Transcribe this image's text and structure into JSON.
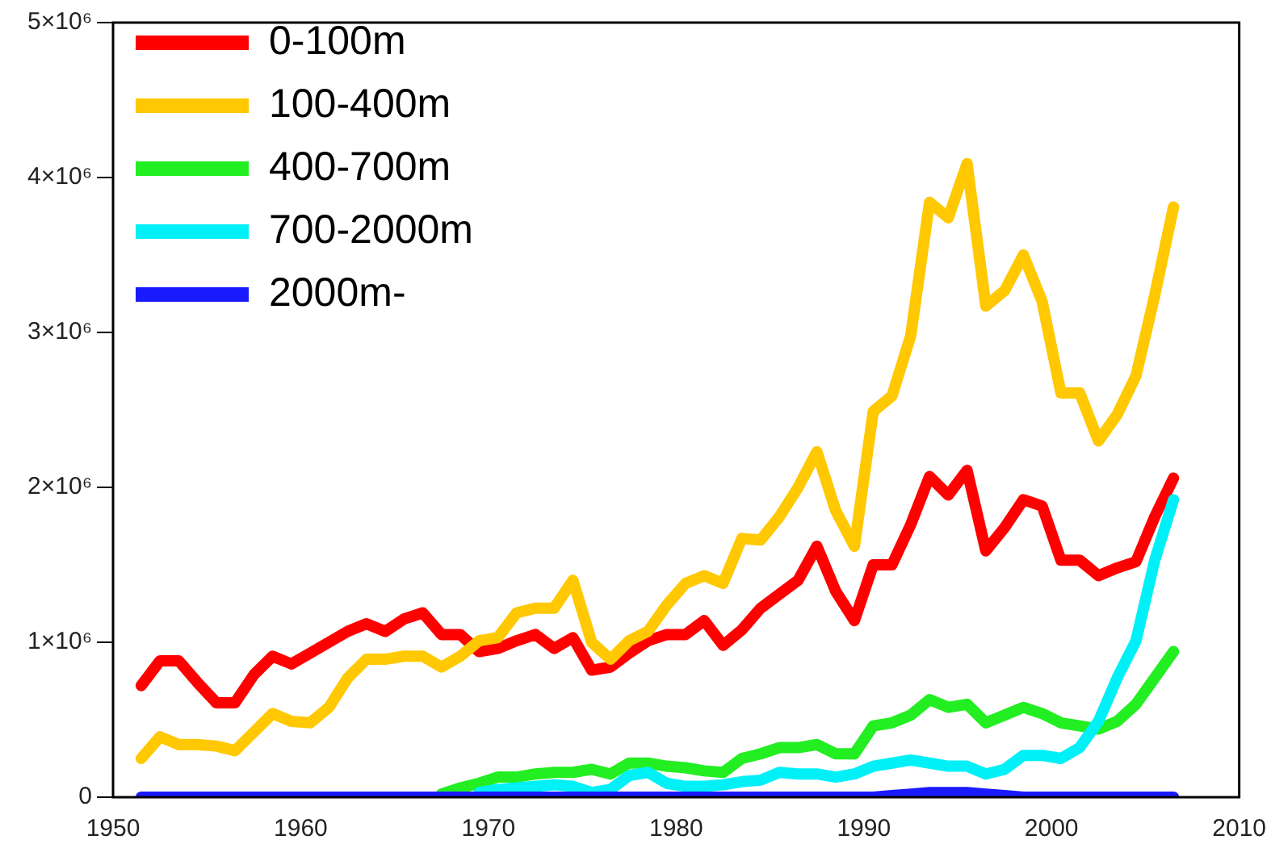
{
  "chart_data": {
    "type": "line",
    "x": [
      1951.5,
      1952.5,
      1953.5,
      1954.5,
      1955.5,
      1956.5,
      1957.5,
      1958.5,
      1959.5,
      1960.5,
      1961.5,
      1962.5,
      1963.5,
      1964.5,
      1965.5,
      1966.5,
      1967.5,
      1968.5,
      1969.5,
      1970.5,
      1971.5,
      1972.5,
      1973.5,
      1974.5,
      1975.5,
      1976.5,
      1977.5,
      1978.5,
      1979.5,
      1980.5,
      1981.5,
      1982.5,
      1983.5,
      1984.5,
      1985.5,
      1986.5,
      1987.5,
      1988.5,
      1989.5,
      1990.5,
      1991.5,
      1992.5,
      1993.5,
      1994.5,
      1995.5,
      1996.5,
      1997.5,
      1998.5,
      1999.5,
      2000.5,
      2001.5,
      2002.5,
      2003.5,
      2004.5,
      2005.5,
      2006.5
    ],
    "series": [
      {
        "name": "0-100m",
        "color": "#ff0000",
        "values": [
          720000,
          880000,
          880000,
          740000,
          610000,
          610000,
          790000,
          910000,
          860000,
          930000,
          1000000,
          1070000,
          1120000,
          1070000,
          1150000,
          1190000,
          1050000,
          1050000,
          940000,
          960000,
          1010000,
          1050000,
          960000,
          1030000,
          820000,
          840000,
          930000,
          1010000,
          1050000,
          1050000,
          1140000,
          980000,
          1080000,
          1220000,
          1310000,
          1400000,
          1620000,
          1330000,
          1140000,
          1500000,
          1500000,
          1760000,
          2070000,
          1950000,
          2110000,
          1590000,
          1740000,
          1920000,
          1880000,
          1530000,
          1530000,
          1430000,
          1480000,
          1520000,
          1810000,
          2060000
        ]
      },
      {
        "name": "100-400m",
        "color": "#ffc800",
        "values": [
          250000,
          390000,
          340000,
          340000,
          330000,
          300000,
          420000,
          540000,
          490000,
          480000,
          580000,
          770000,
          890000,
          890000,
          910000,
          910000,
          840000,
          910000,
          1010000,
          1030000,
          1190000,
          1220000,
          1220000,
          1400000,
          1000000,
          890000,
          1010000,
          1070000,
          1240000,
          1380000,
          1430000,
          1380000,
          1670000,
          1660000,
          1810000,
          2000000,
          2230000,
          1850000,
          1620000,
          2490000,
          2590000,
          2980000,
          3840000,
          3740000,
          4090000,
          3170000,
          3270000,
          3500000,
          3200000,
          2610000,
          2610000,
          2300000,
          2470000,
          2720000,
          3240000,
          3810000
        ]
      },
      {
        "name": "400-700m",
        "color": "#22ee22",
        "values": [
          null,
          null,
          null,
          null,
          null,
          null,
          null,
          null,
          null,
          null,
          null,
          null,
          null,
          null,
          null,
          null,
          20000,
          60000,
          90000,
          130000,
          130000,
          150000,
          160000,
          160000,
          180000,
          150000,
          220000,
          220000,
          200000,
          190000,
          170000,
          160000,
          250000,
          280000,
          320000,
          320000,
          340000,
          280000,
          280000,
          460000,
          480000,
          530000,
          630000,
          580000,
          600000,
          480000,
          530000,
          580000,
          540000,
          480000,
          460000,
          440000,
          490000,
          600000,
          770000,
          940000
        ]
      },
      {
        "name": "700-2000m",
        "color": "#00f0f8",
        "values": [
          null,
          null,
          null,
          null,
          null,
          null,
          null,
          null,
          null,
          null,
          null,
          null,
          null,
          null,
          null,
          null,
          null,
          null,
          30000,
          50000,
          60000,
          70000,
          80000,
          70000,
          30000,
          50000,
          140000,
          160000,
          90000,
          70000,
          70000,
          80000,
          100000,
          110000,
          160000,
          150000,
          150000,
          130000,
          150000,
          200000,
          220000,
          240000,
          220000,
          200000,
          200000,
          150000,
          180000,
          270000,
          270000,
          250000,
          320000,
          490000,
          770000,
          1010000,
          1530000,
          1920000
        ]
      },
      {
        "name": "2000m-",
        "color": "#1a1aff",
        "values": [
          0,
          0,
          0,
          0,
          0,
          0,
          0,
          0,
          0,
          0,
          0,
          0,
          0,
          0,
          0,
          0,
          0,
          0,
          0,
          0,
          0,
          0,
          0,
          0,
          0,
          0,
          0,
          0,
          0,
          0,
          0,
          0,
          0,
          0,
          0,
          0,
          0,
          0,
          0,
          0,
          10000,
          20000,
          30000,
          30000,
          30000,
          20000,
          10000,
          0,
          0,
          0,
          0,
          0,
          0,
          0,
          0,
          0
        ]
      }
    ],
    "xlim": [
      1950,
      2010
    ],
    "xticks": [
      1950,
      1960,
      1970,
      1980,
      1990,
      2000,
      2010
    ],
    "ylim": [
      0,
      5000000
    ],
    "yticks": [
      0,
      {
        "value": 1000000,
        "label": "1×10⁶"
      },
      {
        "value": 2000000,
        "label": "2×10⁶"
      },
      {
        "value": 3000000,
        "label": "3×10⁶"
      },
      {
        "value": 4000000,
        "label": "4×10⁶"
      },
      {
        "value": 5000000,
        "label": "5×10⁶"
      }
    ],
    "grid": false,
    "legend": "top left",
    "marker": "none",
    "line_style": "solid"
  }
}
